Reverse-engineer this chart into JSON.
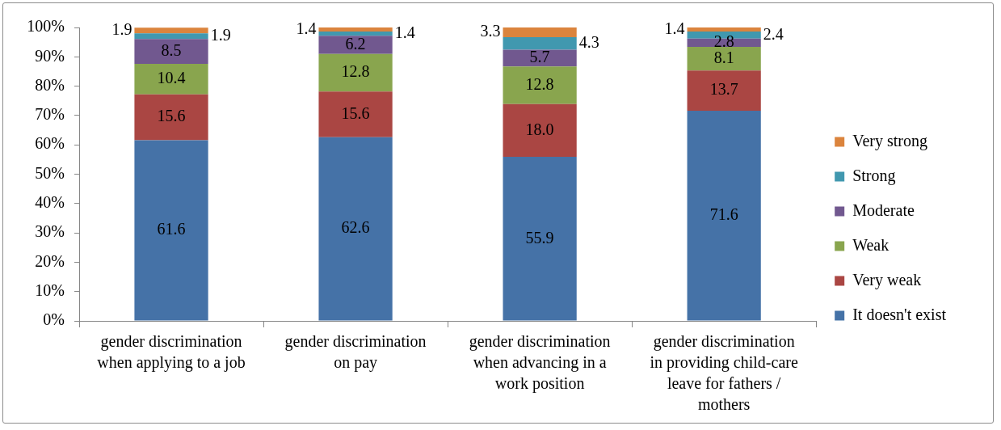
{
  "chart_data": {
    "type": "bar",
    "stacked": true,
    "categories": [
      "gender discrimination when applying to a job",
      "gender discrimination on pay",
      "gender discrimination when advancing in a work position",
      "gender discrimination in providing child-care leave for fathers / mothers"
    ],
    "series": [
      {
        "name": "It doesn't exist",
        "color": "#4572a7",
        "values": [
          61.6,
          62.6,
          55.9,
          71.6
        ],
        "value_labels": [
          "61.6",
          "62.6",
          "55.9",
          "71.6"
        ]
      },
      {
        "name": "Very weak",
        "color": "#aa4643",
        "values": [
          15.6,
          15.6,
          18.0,
          13.7
        ],
        "value_labels": [
          "15.6",
          "15.6",
          "18.0",
          "13.7"
        ]
      },
      {
        "name": "Weak",
        "color": "#89a54e",
        "values": [
          10.4,
          12.8,
          12.8,
          8.1
        ],
        "value_labels": [
          "10.4",
          "12.8",
          "12.8",
          "8.1"
        ]
      },
      {
        "name": "Moderate",
        "color": "#71588f",
        "values": [
          8.5,
          6.2,
          5.7,
          2.8
        ],
        "value_labels": [
          "8.5",
          "6.2",
          "5.7",
          "2.8"
        ]
      },
      {
        "name": "Strong",
        "color": "#4198af",
        "values": [
          1.9,
          1.4,
          4.3,
          2.4
        ],
        "value_labels": [
          "1.9",
          "1.4",
          "4.3",
          "2.4"
        ]
      },
      {
        "name": "Very strong",
        "color": "#db843d",
        "values": [
          1.9,
          1.4,
          3.3,
          1.4
        ],
        "value_labels": [
          "1.9",
          "1.4",
          "3.3",
          "1.4"
        ]
      }
    ],
    "ylim": [
      0,
      100
    ],
    "yticks": [
      {
        "value": 0,
        "label": "0%"
      },
      {
        "value": 10,
        "label": "10%"
      },
      {
        "value": 20,
        "label": "20%"
      },
      {
        "value": 30,
        "label": "30%"
      },
      {
        "value": 40,
        "label": "40%"
      },
      {
        "value": 50,
        "label": "50%"
      },
      {
        "value": 60,
        "label": "60%"
      },
      {
        "value": 70,
        "label": "70%"
      },
      {
        "value": 80,
        "label": "80%"
      },
      {
        "value": 90,
        "label": "90%"
      },
      {
        "value": 100,
        "label": "100%"
      }
    ],
    "legend": "right"
  }
}
